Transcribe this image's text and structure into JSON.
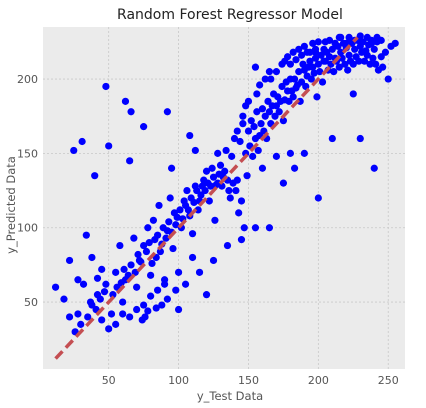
{
  "chart_data": {
    "type": "scatter",
    "title": "Random Forest Regressor Model",
    "xlabel": "y_Test Data",
    "ylabel": "y_Predicted Data",
    "xlim": [
      3,
      262
    ],
    "ylim": [
      5,
      235
    ],
    "xticks": [
      50,
      100,
      150,
      200,
      250
    ],
    "yticks": [
      50,
      100,
      150,
      200
    ],
    "grid": true,
    "point_color": "#0000ff",
    "background_color": "#ebebeb",
    "reference_line": {
      "style": "dashed",
      "color": "#c44e52",
      "x": [
        12,
        228
      ],
      "y": [
        12,
        228
      ]
    },
    "series": [
      {
        "points": [
          [
            12,
            60
          ],
          [
            18,
            52
          ],
          [
            22,
            78
          ],
          [
            25,
            152
          ],
          [
            28,
            65
          ],
          [
            31,
            158
          ],
          [
            34,
            95
          ],
          [
            37,
            50
          ],
          [
            40,
            135
          ],
          [
            42,
            55
          ],
          [
            45,
            72
          ],
          [
            48,
            62
          ],
          [
            50,
            155
          ],
          [
            52,
            42
          ],
          [
            55,
            70
          ],
          [
            58,
            88
          ],
          [
            60,
            50
          ],
          [
            62,
            65
          ],
          [
            65,
            145
          ],
          [
            68,
            93
          ],
          [
            70,
            60
          ],
          [
            72,
            78
          ],
          [
            74,
            38
          ],
          [
            76,
            40
          ],
          [
            78,
            100
          ],
          [
            80,
            68
          ],
          [
            82,
            105
          ],
          [
            84,
            80
          ],
          [
            86,
            115
          ],
          [
            88,
            89
          ],
          [
            90,
            62
          ],
          [
            92,
            98
          ],
          [
            94,
            120
          ],
          [
            96,
            86
          ],
          [
            98,
            102
          ],
          [
            100,
            45
          ],
          [
            102,
            100
          ],
          [
            104,
            118
          ],
          [
            106,
            125
          ],
          [
            108,
            108
          ],
          [
            110,
            96
          ],
          [
            112,
            128
          ],
          [
            114,
            112
          ],
          [
            116,
            122
          ],
          [
            118,
            132
          ],
          [
            120,
            138
          ],
          [
            122,
            118
          ],
          [
            124,
            140
          ],
          [
            126,
            105
          ],
          [
            128,
            130
          ],
          [
            130,
            142
          ],
          [
            132,
            134
          ],
          [
            134,
            152
          ],
          [
            136,
            125
          ],
          [
            138,
            148
          ],
          [
            140,
            160
          ],
          [
            142,
            132
          ],
          [
            144,
            158
          ],
          [
            146,
            170
          ],
          [
            148,
            150
          ],
          [
            150,
            165
          ],
          [
            152,
            172
          ],
          [
            154,
            168
          ],
          [
            156,
            178
          ],
          [
            158,
            162
          ],
          [
            160,
            180
          ],
          [
            162,
            175
          ],
          [
            164,
            185
          ],
          [
            166,
            170
          ],
          [
            168,
            190
          ],
          [
            170,
            182
          ],
          [
            172,
            178
          ],
          [
            174,
            195
          ],
          [
            176,
            186
          ],
          [
            178,
            192
          ],
          [
            180,
            200
          ],
          [
            182,
            188
          ],
          [
            184,
            194
          ],
          [
            186,
            205
          ],
          [
            188,
            198
          ],
          [
            190,
            206
          ],
          [
            192,
            202
          ],
          [
            194,
            212
          ],
          [
            196,
            208
          ],
          [
            198,
            214
          ],
          [
            200,
            210
          ],
          [
            202,
            216
          ],
          [
            204,
            212
          ],
          [
            206,
            218
          ],
          [
            208,
            215
          ],
          [
            210,
            220
          ],
          [
            212,
            214
          ],
          [
            214,
            222
          ],
          [
            216,
            218
          ],
          [
            218,
            224
          ],
          [
            220,
            221
          ],
          [
            222,
            216
          ],
          [
            224,
            224
          ],
          [
            226,
            220
          ],
          [
            228,
            226
          ],
          [
            230,
            222
          ],
          [
            232,
            225
          ],
          [
            234,
            219
          ],
          [
            236,
            223
          ],
          [
            238,
            224
          ],
          [
            240,
            220
          ],
          [
            242,
            225
          ],
          [
            245,
            215
          ],
          [
            248,
            218
          ],
          [
            252,
            222
          ],
          [
            255,
            224
          ],
          [
            30,
            35
          ],
          [
            35,
            40
          ],
          [
            38,
            48
          ],
          [
            41,
            45
          ],
          [
            44,
            52
          ],
          [
            47,
            57
          ],
          [
            53,
            55
          ],
          [
            56,
            60
          ],
          [
            59,
            63
          ],
          [
            61,
            72
          ],
          [
            64,
            68
          ],
          [
            66,
            75
          ],
          [
            69,
            70
          ],
          [
            71,
            82
          ],
          [
            73,
            77
          ],
          [
            75,
            88
          ],
          [
            77,
            84
          ],
          [
            79,
            90
          ],
          [
            81,
            76
          ],
          [
            83,
            92
          ],
          [
            85,
            95
          ],
          [
            87,
            84
          ],
          [
            89,
            100
          ],
          [
            91,
            93
          ],
          [
            93,
            104
          ],
          [
            95,
            97
          ],
          [
            97,
            110
          ],
          [
            99,
            107
          ],
          [
            101,
            112
          ],
          [
            103,
            106
          ],
          [
            105,
            115
          ],
          [
            107,
            112
          ],
          [
            109,
            120
          ],
          [
            111,
            117
          ],
          [
            113,
            125
          ],
          [
            115,
            118
          ],
          [
            117,
            128
          ],
          [
            119,
            125
          ],
          [
            121,
            130
          ],
          [
            123,
            128
          ],
          [
            125,
            134
          ],
          [
            127,
            129
          ],
          [
            129,
            136
          ],
          [
            131,
            128
          ],
          [
            133,
            138
          ],
          [
            135,
            132
          ],
          [
            137,
            120
          ],
          [
            139,
            130
          ],
          [
            141,
            125
          ],
          [
            143,
            110
          ],
          [
            145,
            118
          ],
          [
            147,
            100
          ],
          [
            149,
            135
          ],
          [
            151,
            155
          ],
          [
            153,
            148
          ],
          [
            155,
            160
          ],
          [
            157,
            152
          ],
          [
            159,
            170
          ],
          [
            161,
            165
          ],
          [
            163,
            160
          ],
          [
            165,
            178
          ],
          [
            167,
            182
          ],
          [
            169,
            175
          ],
          [
            171,
            188
          ],
          [
            173,
            185
          ],
          [
            175,
            172
          ],
          [
            177,
            198
          ],
          [
            179,
            185
          ],
          [
            181,
            192
          ],
          [
            183,
            200
          ],
          [
            185,
            196
          ],
          [
            187,
            185
          ],
          [
            189,
            210
          ],
          [
            191,
            195
          ],
          [
            193,
            208
          ],
          [
            195,
            200
          ],
          [
            197,
            204
          ],
          [
            199,
            188
          ],
          [
            201,
            205
          ],
          [
            203,
            198
          ],
          [
            205,
            212
          ],
          [
            207,
            206
          ],
          [
            209,
            210
          ],
          [
            211,
            205
          ],
          [
            213,
            212
          ],
          [
            215,
            208
          ],
          [
            217,
            214
          ],
          [
            219,
            210
          ],
          [
            221,
            206
          ],
          [
            223,
            212
          ],
          [
            225,
            210
          ],
          [
            227,
            215
          ],
          [
            229,
            212
          ],
          [
            231,
            218
          ],
          [
            233,
            212
          ],
          [
            235,
            216
          ],
          [
            237,
            210
          ],
          [
            239,
            214
          ],
          [
            241,
            210
          ],
          [
            243,
            206
          ],
          [
            246,
            208
          ],
          [
            250,
            200
          ],
          [
            240,
            140
          ],
          [
            230,
            160
          ],
          [
            200,
            120
          ],
          [
            180,
            150
          ],
          [
            160,
            140
          ],
          [
            155,
            100
          ],
          [
            120,
            55
          ],
          [
            110,
            80
          ],
          [
            100,
            70
          ],
          [
            95,
            140
          ],
          [
            90,
            65
          ],
          [
            85,
            58
          ],
          [
            78,
            44
          ],
          [
            70,
            45
          ],
          [
            65,
            40
          ],
          [
            60,
            42
          ],
          [
            55,
            35
          ],
          [
            50,
            32
          ],
          [
            45,
            38
          ],
          [
            42,
            66
          ],
          [
            38,
            80
          ],
          [
            32,
            62
          ],
          [
            28,
            42
          ],
          [
            26,
            30
          ],
          [
            22,
            40
          ],
          [
            48,
            195
          ],
          [
            62,
            185
          ],
          [
            66,
            178
          ],
          [
            75,
            168
          ],
          [
            92,
            178
          ],
          [
            108,
            162
          ],
          [
            112,
            152
          ],
          [
            128,
            150
          ],
          [
            170,
            148
          ],
          [
            190,
            150
          ],
          [
            210,
            160
          ],
          [
            225,
            190
          ],
          [
            175,
            130
          ],
          [
            183,
            140
          ],
          [
            155,
            208
          ],
          [
            165,
            205
          ],
          [
            192,
            218
          ],
          [
            198,
            220
          ],
          [
            205,
            225
          ],
          [
            215,
            228
          ],
          [
            165,
            100
          ],
          [
            145,
            92
          ],
          [
            135,
            88
          ],
          [
            125,
            78
          ],
          [
            115,
            70
          ],
          [
            105,
            62
          ],
          [
            98,
            58
          ],
          [
            92,
            52
          ],
          [
            88,
            48
          ],
          [
            84,
            46
          ],
          [
            80,
            54
          ],
          [
            75,
            48
          ],
          [
            142,
            165
          ],
          [
            146,
            175
          ],
          [
            148,
            182
          ],
          [
            150,
            185
          ],
          [
            156,
            190
          ],
          [
            158,
            196
          ],
          [
            162,
            200
          ],
          [
            166,
            200
          ],
          [
            170,
            205
          ],
          [
            174,
            210
          ],
          [
            176,
            212
          ],
          [
            178,
            215
          ],
          [
            180,
            210
          ],
          [
            182,
            218
          ],
          [
            184,
            213
          ],
          [
            186,
            220
          ],
          [
            188,
            216
          ],
          [
            190,
            222
          ],
          [
            194,
            218
          ],
          [
            196,
            224
          ],
          [
            198,
            218
          ],
          [
            200,
            225
          ],
          [
            204,
            220
          ],
          [
            208,
            226
          ],
          [
            212,
            224
          ],
          [
            216,
            228
          ],
          [
            220,
            224
          ],
          [
            222,
            228
          ],
          [
            226,
            226
          ],
          [
            230,
            229
          ],
          [
            235,
            228
          ],
          [
            238,
            226
          ],
          [
            242,
            228
          ],
          [
            245,
            226
          ]
        ]
      }
    ]
  }
}
